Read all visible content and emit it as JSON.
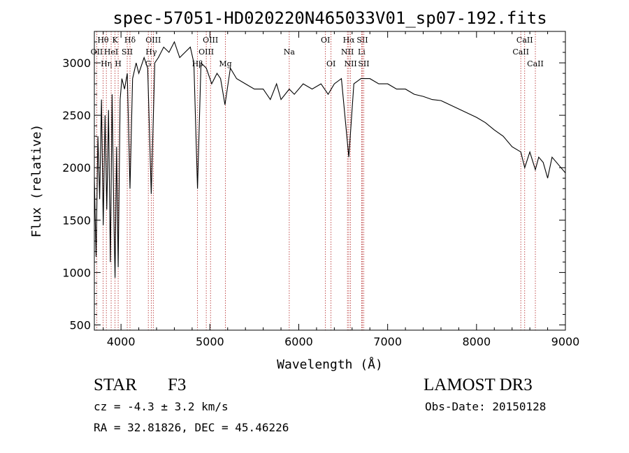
{
  "chart_data": {
    "type": "line",
    "title": "spec-57051-HD020220N465033V01_sp07-192.fits",
    "xlabel": "Wavelength (Å)",
    "ylabel": "Flux (relative)",
    "xlim": [
      3700,
      9000
    ],
    "ylim": [
      450,
      3300
    ],
    "x_ticks": [
      4000,
      5000,
      6000,
      7000,
      8000,
      9000
    ],
    "y_ticks": [
      500,
      1000,
      1500,
      2000,
      2500,
      3000
    ],
    "series": [
      {
        "name": "spectrum",
        "x": [
          3700,
          3720,
          3740,
          3760,
          3780,
          3800,
          3820,
          3840,
          3860,
          3880,
          3900,
          3920,
          3933,
          3950,
          3968,
          3990,
          4010,
          4040,
          4070,
          4101,
          4130,
          4170,
          4200,
          4260,
          4300,
          4340,
          4380,
          4420,
          4480,
          4540,
          4600,
          4660,
          4720,
          4780,
          4820,
          4861,
          4900,
          4960,
          5020,
          5080,
          5120,
          5170,
          5230,
          5300,
          5400,
          5500,
          5600,
          5680,
          5750,
          5800,
          5893,
          5950,
          6050,
          6150,
          6250,
          6330,
          6400,
          6480,
          6563,
          6620,
          6700,
          6800,
          6900,
          7000,
          7100,
          7200,
          7300,
          7400,
          7500,
          7600,
          7700,
          7800,
          7900,
          8000,
          8100,
          8200,
          8300,
          8400,
          8498,
          8542,
          8600,
          8662,
          8700,
          8750,
          8800,
          8850,
          8900,
          8950,
          9000
        ],
        "values": [
          1900,
          1150,
          2300,
          1700,
          2650,
          1450,
          2500,
          1600,
          2550,
          1100,
          2700,
          1500,
          950,
          2200,
          1050,
          2650,
          2850,
          2750,
          2900,
          1800,
          2850,
          3000,
          2900,
          3050,
          2950,
          1750,
          3000,
          3050,
          3150,
          3100,
          3200,
          3050,
          3100,
          3150,
          3000,
          1800,
          3000,
          2950,
          2800,
          2900,
          2850,
          2600,
          2950,
          2850,
          2800,
          2750,
          2750,
          2650,
          2800,
          2650,
          2750,
          2700,
          2800,
          2750,
          2800,
          2700,
          2800,
          2850,
          2100,
          2800,
          2850,
          2850,
          2800,
          2800,
          2750,
          2750,
          2700,
          2680,
          2650,
          2640,
          2600,
          2560,
          2520,
          2480,
          2430,
          2360,
          2300,
          2200,
          2150,
          2000,
          2150,
          1980,
          2100,
          2050,
          1900,
          2100,
          2050,
          2000,
          1950
        ]
      }
    ],
    "lines": [
      {
        "label": "Hθ",
        "x": 3798,
        "row": 0
      },
      {
        "label": "OII",
        "x": 3727,
        "row": 1
      },
      {
        "label": "Hη",
        "x": 3835,
        "row": 2
      },
      {
        "label": "HeI",
        "x": 3889,
        "row": 1
      },
      {
        "label": "K",
        "x": 3933,
        "row": 0
      },
      {
        "label": "H",
        "x": 3968,
        "row": 2
      },
      {
        "label": "SII",
        "x": 4070,
        "row": 1
      },
      {
        "label": "Hδ",
        "x": 4101,
        "row": 0
      },
      {
        "label": "OIII",
        "x": 4363,
        "row": 0
      },
      {
        "label": "G",
        "x": 4307,
        "row": 2
      },
      {
        "label": "Hγ",
        "x": 4340,
        "row": 1
      },
      {
        "label": "Hβ",
        "x": 4861,
        "row": 2
      },
      {
        "label": "OIII",
        "x": 4959,
        "row": 1
      },
      {
        "label": "OIII",
        "x": 5007,
        "row": 0
      },
      {
        "label": "Mg",
        "x": 5175,
        "row": 2
      },
      {
        "label": "Na",
        "x": 5893,
        "row": 1
      },
      {
        "label": "OI",
        "x": 6300,
        "row": 0
      },
      {
        "label": "OI",
        "x": 6363,
        "row": 2
      },
      {
        "label": "Hα",
        "x": 6563,
        "row": 0
      },
      {
        "label": "NII",
        "x": 6548,
        "row": 1
      },
      {
        "label": "NII",
        "x": 6583,
        "row": 2
      },
      {
        "label": "SII",
        "x": 6716,
        "row": 0
      },
      {
        "label": "Li",
        "x": 6707,
        "row": 1
      },
      {
        "label": "SII",
        "x": 6731,
        "row": 2
      },
      {
        "label": "CaII",
        "x": 8542,
        "row": 0
      },
      {
        "label": "CaII",
        "x": 8498,
        "row": 1
      },
      {
        "label": "CaII",
        "x": 8662,
        "row": 2
      }
    ],
    "line_color": "#b22222",
    "spectrum_color": "#000000"
  },
  "info": {
    "object_class": "STAR",
    "subclass": "F3",
    "survey": "LAMOST DR3",
    "cz": "cz = -4.3 ± 3.2 km/s",
    "obs_date": "Obs-Date: 20150128",
    "radec": "RA =  32.81826, DEC =  45.46226"
  }
}
